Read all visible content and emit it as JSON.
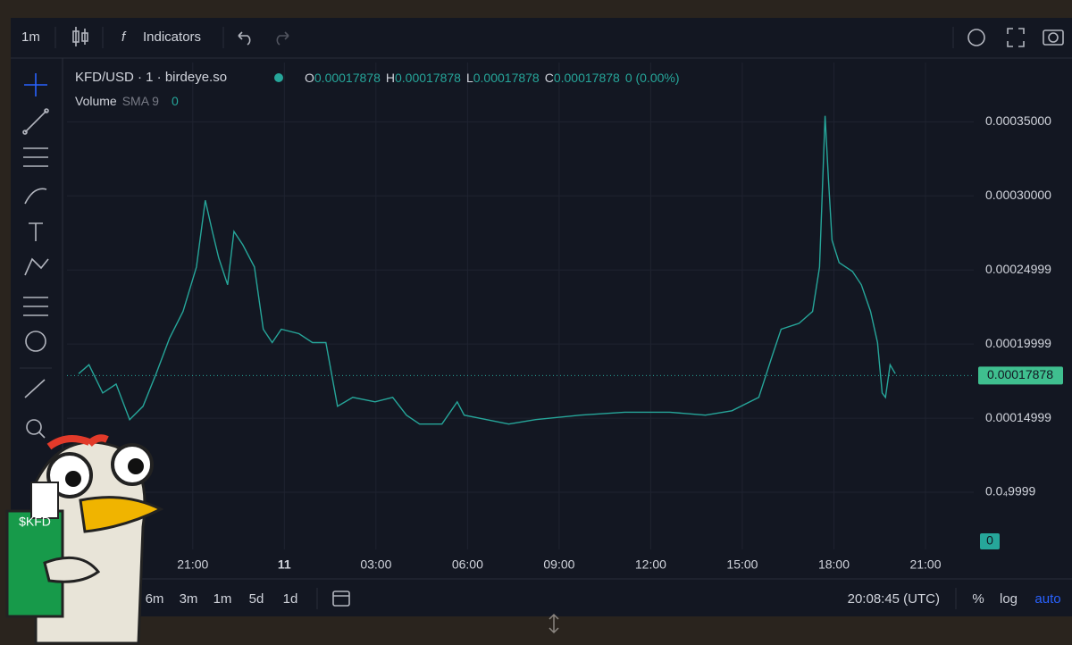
{
  "toolbar": {
    "interval": "1m",
    "indicators": "Indicators"
  },
  "legend": {
    "symbol": "KFD/USD · 1 · birdeye.so",
    "open_label": "O",
    "open": "0.00017878",
    "high_label": "H",
    "high": "0.00017878",
    "low_label": "L",
    "low": "0.00017878",
    "close_label": "C",
    "close": "0.00017878",
    "change": "0 (0.00%)",
    "volume_label": "Volume",
    "sma_label": "SMA 9",
    "volume_value": "0"
  },
  "chart_data": {
    "type": "line",
    "x": [
      17.26,
      17.6,
      18.05,
      18.49,
      18.93,
      19.37,
      19.8,
      20.24,
      20.68,
      21.12,
      21.41,
      21.64,
      21.85,
      22.14,
      22.35,
      22.64,
      23.02,
      23.31,
      23.6,
      23.9,
      24.48,
      24.92,
      25.36,
      25.74,
      26.24,
      26.97,
      27.55,
      28.0,
      28.43,
      29.16,
      29.66,
      29.89,
      30.62,
      31.35,
      32.23,
      33.69,
      35.15,
      36.62,
      37.79,
      38.66,
      39.54,
      39.98,
      40.27,
      40.86,
      41.3,
      41.53,
      41.71,
      41.82,
      41.94,
      42.17,
      42.61,
      42.9,
      43.2,
      43.43,
      43.58,
      43.69,
      43.84,
      44.01
    ],
    "series": [
      {
        "color": "#26a69a",
        "values": [
          0.00018,
          0.000186,
          0.000167,
          0.000173,
          0.000149,
          0.000158,
          0.00018,
          0.000204,
          0.000222,
          0.000252,
          0.000297,
          0.000276,
          0.000258,
          0.00024,
          0.000276,
          0.000267,
          0.000252,
          0.00021,
          0.000201,
          0.00021,
          0.000207,
          0.000201,
          0.000201,
          0.000158,
          0.000164,
          0.000161,
          0.000164,
          0.000152,
          0.000146,
          0.000146,
          0.000161,
          0.000152,
          0.000149,
          0.000146,
          0.000149,
          0.000152,
          0.000154,
          0.000154,
          0.000152,
          0.000155,
          0.000164,
          0.000192,
          0.00021,
          0.000214,
          0.000222,
          0.000252,
          0.000354,
          0.000312,
          0.00027,
          0.000255,
          0.000249,
          0.00024,
          0.000222,
          0.000201,
          0.000167,
          0.000164,
          0.000186,
          0.00018
        ]
      }
    ],
    "xlim": [
      16.88,
      46.58
    ],
    "xticks": [
      {
        "value": 21,
        "label": "21:00"
      },
      {
        "value": 24,
        "label": "11"
      },
      {
        "value": 27,
        "label": "03:00"
      },
      {
        "value": 30,
        "label": "06:00"
      },
      {
        "value": 33,
        "label": "09:00"
      },
      {
        "value": 36,
        "label": "12:00"
      },
      {
        "value": 39,
        "label": "15:00"
      },
      {
        "value": 42,
        "label": "18:00"
      },
      {
        "value": 45,
        "label": "21:00"
      }
    ],
    "ylim": [
      6.14e-05,
      0.00039
    ],
    "yticks": [
      {
        "value": 0.00035,
        "label": "0.00035000"
      },
      {
        "value": 0.0003,
        "label": "0.00030000"
      },
      0.00024999,
      0.00019999,
      0.00014999,
      {
        "value": 9.999e-05,
        "label": "0.0₄9999"
      }
    ],
    "last_value": 0.00017878,
    "volume_axis_label": "0",
    "grid": true
  },
  "bottom_bar": {
    "ranges": [
      "6m",
      "3m",
      "1m",
      "5d",
      "1d"
    ],
    "clock": "20:08:45 (UTC)",
    "percent": "%",
    "log": "log",
    "auto": "auto"
  },
  "sticker": {
    "text": "$KFD"
  }
}
